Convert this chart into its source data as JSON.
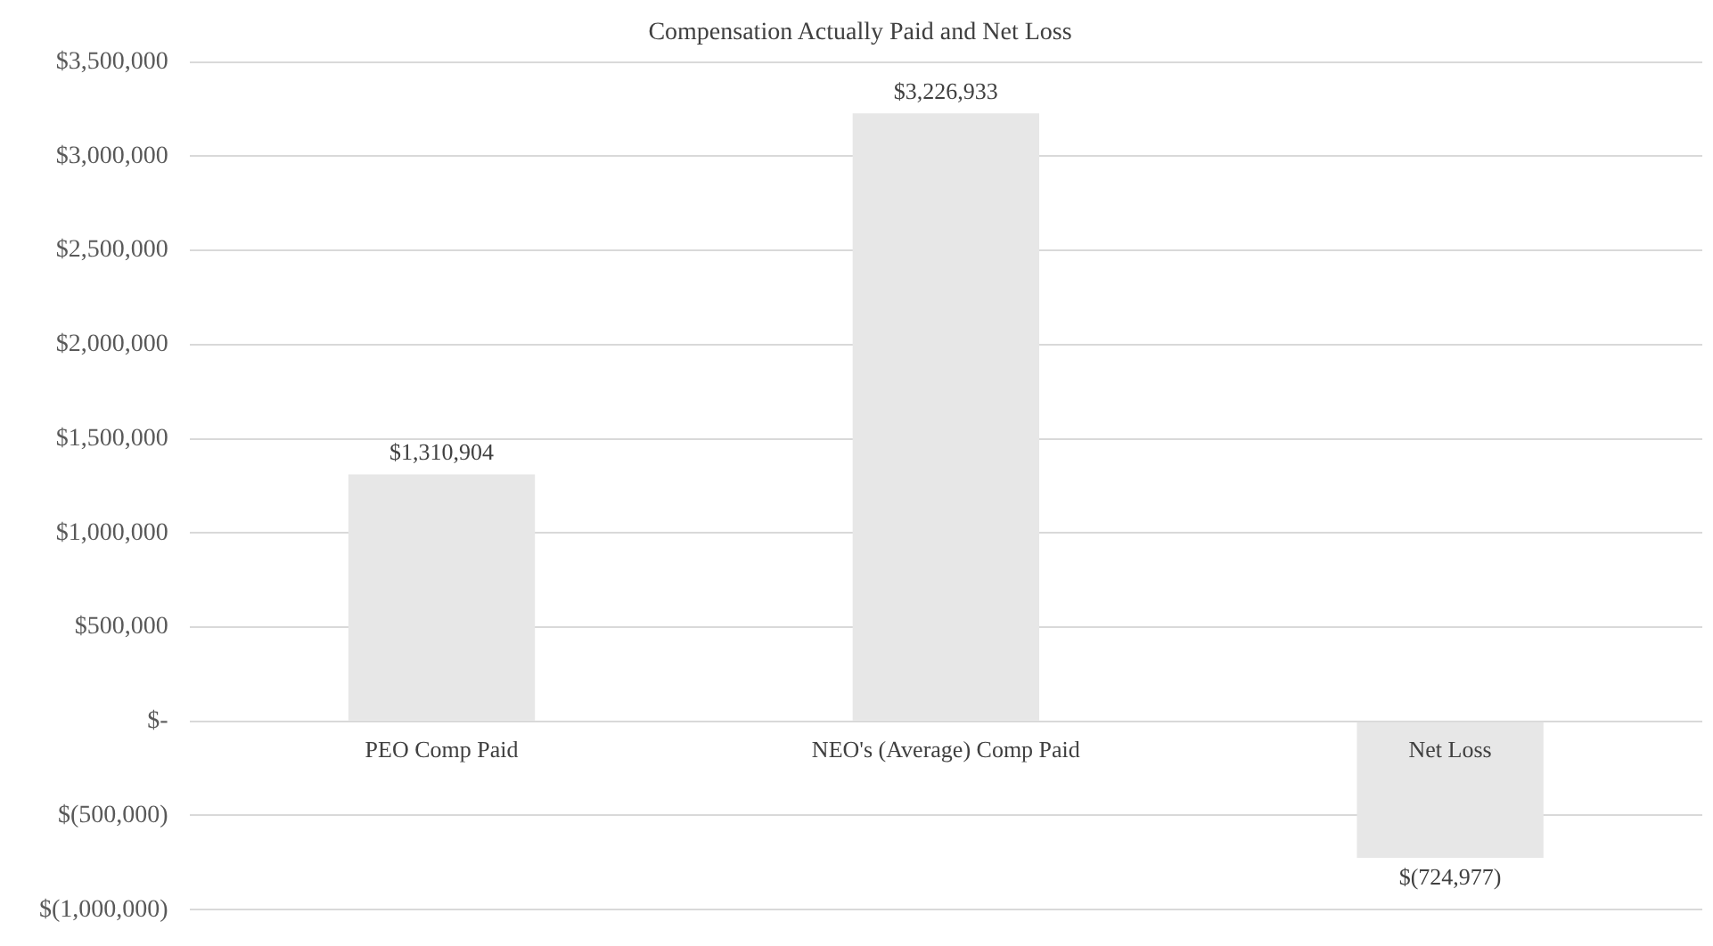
{
  "chart_data": {
    "type": "bar",
    "title": "Compensation Actually Paid and Net Loss",
    "categories": [
      "PEO Comp Paid",
      "NEO's (Average) Comp Paid",
      "Net Loss"
    ],
    "values": [
      1310904,
      3226933,
      -724977
    ],
    "value_labels": [
      "$1,310,904",
      "$3,226,933",
      "$(724,977)"
    ],
    "color": "#e7e7e7",
    "ylim": [
      -1000000,
      3500000
    ],
    "yticks": [
      {
        "value": -1000000,
        "label": "$(1,000,000)"
      },
      {
        "value": -500000,
        "label": "$(500,000)"
      },
      {
        "value": 0,
        "label": "$-"
      },
      {
        "value": 500000,
        "label": "$500,000"
      },
      {
        "value": 1000000,
        "label": "$1,000,000"
      },
      {
        "value": 1500000,
        "label": "$1,500,000"
      },
      {
        "value": 2000000,
        "label": "$2,000,000"
      },
      {
        "value": 2500000,
        "label": "$2,500,000"
      },
      {
        "value": 3000000,
        "label": "$3,000,000"
      },
      {
        "value": 3500000,
        "label": "$3,500,000"
      }
    ],
    "grid": "y"
  }
}
